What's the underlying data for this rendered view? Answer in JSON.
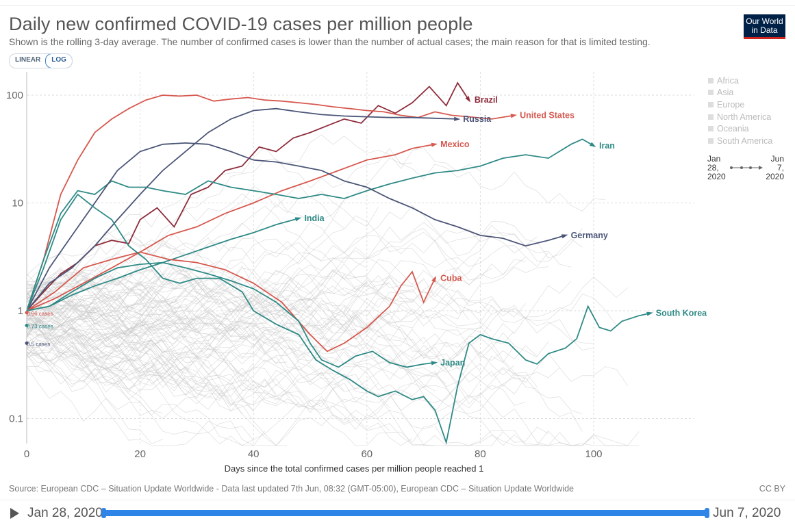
{
  "header": {
    "title": "Daily new confirmed COVID-19 cases per million people",
    "subtitle": "Shown is the rolling 3-day average. The number of confirmed cases is lower than the number of actual cases; the main reason for that is limited testing.",
    "logo_line1": "Our World",
    "logo_line2": "in Data"
  },
  "scale_toggle": {
    "linear": "LINEAR",
    "log": "LOG",
    "selected": "LOG"
  },
  "legend": {
    "items": [
      "Africa",
      "Asia",
      "Europe",
      "North America",
      "Oceania",
      "South America"
    ],
    "timeline_start_l1": "Jan",
    "timeline_start_l2": "28,",
    "timeline_start_l3": "2020",
    "timeline_end_l1": "Jun",
    "timeline_end_l2": "7,",
    "timeline_end_l3": "2020"
  },
  "footer": {
    "source": "Source: European CDC – Situation Update Worldwide - Data last updated 7th Jun, 08:32 (GMT-05:00), European CDC – Situation Update Worldwide",
    "license": "CC BY"
  },
  "timeline": {
    "start": "Jan 28, 2020",
    "end": "Jun 7, 2020"
  },
  "chart_data": {
    "type": "line",
    "title": "Daily new confirmed COVID-19 cases per million people",
    "xlabel": "Days since the total confirmed cases per million people reached 1",
    "ylabel": "",
    "yscale": "log",
    "xlim": [
      0,
      118
    ],
    "ylim": [
      0.05,
      150
    ],
    "x_ticks": [
      0,
      20,
      40,
      60,
      80,
      100
    ],
    "y_ticks": [
      0.1,
      1,
      10,
      100
    ],
    "y_tick_labels": [
      "0.1",
      "1",
      "10",
      "100"
    ],
    "start_annotations": [
      "0.96 cases",
      "0.73 cases",
      "0.5 cases"
    ],
    "colors": {
      "red": "#d6584e",
      "darkred": "#8f2c3b",
      "navy": "#4b5577",
      "teal": "#2e8a86",
      "grey": "#c8c8c8"
    },
    "series": [
      {
        "name": "Brazil",
        "color": "#8f2c3b",
        "points": [
          [
            0,
            1
          ],
          [
            3,
            1.5
          ],
          [
            6,
            2.2
          ],
          [
            9,
            2.8
          ],
          [
            12,
            4
          ],
          [
            15,
            4.5
          ],
          [
            18,
            4.2
          ],
          [
            20,
            7
          ],
          [
            23,
            9
          ],
          [
            26,
            6
          ],
          [
            29,
            12
          ],
          [
            32,
            14
          ],
          [
            35,
            20
          ],
          [
            38,
            22
          ],
          [
            41,
            33
          ],
          [
            44,
            30
          ],
          [
            47,
            40
          ],
          [
            50,
            45
          ],
          [
            53,
            52
          ],
          [
            56,
            60
          ],
          [
            59,
            55
          ],
          [
            62,
            80
          ],
          [
            65,
            68
          ],
          [
            68,
            85
          ],
          [
            71,
            120
          ],
          [
            74,
            80
          ],
          [
            76,
            130
          ],
          [
            78,
            90
          ]
        ]
      },
      {
        "name": "United States",
        "color": "#d6584e",
        "points": [
          [
            0,
            1
          ],
          [
            3,
            3
          ],
          [
            6,
            12
          ],
          [
            9,
            25
          ],
          [
            12,
            45
          ],
          [
            15,
            60
          ],
          [
            18,
            75
          ],
          [
            21,
            90
          ],
          [
            24,
            100
          ],
          [
            27,
            98
          ],
          [
            30,
            100
          ],
          [
            33,
            88
          ],
          [
            36,
            92
          ],
          [
            39,
            95
          ],
          [
            42,
            90
          ],
          [
            45,
            88
          ],
          [
            48,
            85
          ],
          [
            51,
            82
          ],
          [
            54,
            78
          ],
          [
            57,
            75
          ],
          [
            60,
            72
          ],
          [
            63,
            70
          ],
          [
            66,
            65
          ],
          [
            69,
            62
          ],
          [
            72,
            70
          ],
          [
            75,
            65
          ],
          [
            78,
            63
          ],
          [
            82,
            60
          ],
          [
            86,
            65
          ]
        ]
      },
      {
        "name": "Russia",
        "color": "#4b5577",
        "points": [
          [
            0,
            1
          ],
          [
            4,
            1.8
          ],
          [
            8,
            2.5
          ],
          [
            12,
            4
          ],
          [
            16,
            7
          ],
          [
            20,
            12
          ],
          [
            24,
            20
          ],
          [
            28,
            30
          ],
          [
            32,
            45
          ],
          [
            36,
            60
          ],
          [
            40,
            72
          ],
          [
            44,
            75
          ],
          [
            48,
            70
          ],
          [
            52,
            66
          ],
          [
            56,
            64
          ],
          [
            60,
            63
          ],
          [
            64,
            62
          ],
          [
            68,
            62
          ],
          [
            72,
            61
          ],
          [
            76,
            60
          ]
        ]
      },
      {
        "name": "Mexico",
        "color": "#d6584e",
        "points": [
          [
            0,
            1
          ],
          [
            5,
            1.3
          ],
          [
            10,
            1.8
          ],
          [
            15,
            2.5
          ],
          [
            20,
            3.5
          ],
          [
            25,
            5
          ],
          [
            30,
            6
          ],
          [
            35,
            8
          ],
          [
            40,
            10
          ],
          [
            45,
            13
          ],
          [
            50,
            16
          ],
          [
            55,
            20
          ],
          [
            60,
            25
          ],
          [
            65,
            28
          ],
          [
            68,
            32
          ],
          [
            72,
            35
          ]
        ]
      },
      {
        "name": "Iran",
        "color": "#2e8a86",
        "points": [
          [
            0,
            1
          ],
          [
            3,
            3
          ],
          [
            6,
            8
          ],
          [
            9,
            13
          ],
          [
            12,
            12
          ],
          [
            15,
            16
          ],
          [
            18,
            14
          ],
          [
            21,
            14
          ],
          [
            24,
            13
          ],
          [
            28,
            12
          ],
          [
            32,
            16
          ],
          [
            36,
            14
          ],
          [
            40,
            13
          ],
          [
            44,
            12
          ],
          [
            48,
            11
          ],
          [
            52,
            12
          ],
          [
            56,
            11
          ],
          [
            60,
            13
          ],
          [
            64,
            15
          ],
          [
            68,
            17
          ],
          [
            72,
            19
          ],
          [
            76,
            20
          ],
          [
            80,
            22
          ],
          [
            84,
            26
          ],
          [
            88,
            28
          ],
          [
            92,
            26
          ],
          [
            96,
            35
          ],
          [
            98,
            39
          ],
          [
            100,
            34
          ]
        ]
      },
      {
        "name": "India",
        "color": "#2e8a86",
        "points": [
          [
            0,
            1
          ],
          [
            4,
            1.1
          ],
          [
            8,
            1.4
          ],
          [
            12,
            1.7
          ],
          [
            16,
            2
          ],
          [
            20,
            2.4
          ],
          [
            24,
            2.8
          ],
          [
            28,
            3.3
          ],
          [
            32,
            3.9
          ],
          [
            36,
            4.6
          ],
          [
            40,
            5.3
          ],
          [
            44,
            6.3
          ],
          [
            48,
            7.2
          ]
        ]
      },
      {
        "name": "Germany",
        "color": "#4b5577",
        "points": [
          [
            0,
            1
          ],
          [
            4,
            2.5
          ],
          [
            8,
            5
          ],
          [
            12,
            10
          ],
          [
            16,
            20
          ],
          [
            20,
            30
          ],
          [
            24,
            35
          ],
          [
            28,
            36
          ],
          [
            32,
            35
          ],
          [
            36,
            30
          ],
          [
            40,
            25
          ],
          [
            44,
            24
          ],
          [
            48,
            22
          ],
          [
            52,
            20
          ],
          [
            56,
            16
          ],
          [
            60,
            14
          ],
          [
            64,
            11
          ],
          [
            68,
            9
          ],
          [
            72,
            7
          ],
          [
            76,
            6
          ],
          [
            80,
            5
          ],
          [
            84,
            4.7
          ],
          [
            88,
            4
          ],
          [
            92,
            4.5
          ],
          [
            95,
            5
          ]
        ]
      },
      {
        "name": "Cuba",
        "color": "#d6584e",
        "points": [
          [
            0,
            1
          ],
          [
            5,
            1.5
          ],
          [
            10,
            2.5
          ],
          [
            15,
            3
          ],
          [
            20,
            3.5
          ],
          [
            25,
            3
          ],
          [
            30,
            2.8
          ],
          [
            35,
            2.4
          ],
          [
            40,
            1.8
          ],
          [
            45,
            1.2
          ],
          [
            50,
            0.6
          ],
          [
            53,
            0.42
          ],
          [
            56,
            0.5
          ],
          [
            60,
            0.7
          ],
          [
            64,
            1.1
          ],
          [
            66,
            1.7
          ],
          [
            68,
            2.3
          ],
          [
            70,
            1.2
          ],
          [
            72,
            2
          ]
        ]
      },
      {
        "name": "Japan",
        "color": "#2e8a86",
        "points": [
          [
            0,
            1
          ],
          [
            4,
            1.1
          ],
          [
            8,
            1.5
          ],
          [
            12,
            2
          ],
          [
            16,
            2.5
          ],
          [
            20,
            2.7
          ],
          [
            24,
            2.8
          ],
          [
            28,
            2.5
          ],
          [
            32,
            2.2
          ],
          [
            36,
            1.9
          ],
          [
            40,
            1.6
          ],
          [
            44,
            1.2
          ],
          [
            48,
            0.8
          ],
          [
            50,
            0.5
          ],
          [
            52,
            0.35
          ],
          [
            55,
            0.3
          ],
          [
            58,
            0.38
          ],
          [
            61,
            0.42
          ],
          [
            64,
            0.33
          ],
          [
            67,
            0.3
          ],
          [
            70,
            0.32
          ],
          [
            72,
            0.33
          ]
        ]
      },
      {
        "name": "South Korea",
        "color": "#2e8a86",
        "points": [
          [
            0,
            1
          ],
          [
            3,
            2.5
          ],
          [
            6,
            7
          ],
          [
            9,
            12
          ],
          [
            12,
            9
          ],
          [
            15,
            7
          ],
          [
            18,
            4
          ],
          [
            21,
            3
          ],
          [
            24,
            2
          ],
          [
            27,
            1.8
          ],
          [
            30,
            2
          ],
          [
            34,
            2
          ],
          [
            38,
            1.5
          ],
          [
            40,
            1
          ],
          [
            44,
            0.75
          ],
          [
            48,
            0.6
          ],
          [
            51,
            0.35
          ],
          [
            54,
            0.28
          ],
          [
            57,
            0.23
          ],
          [
            60,
            0.18
          ],
          [
            62,
            0.16
          ],
          [
            65,
            0.18
          ],
          [
            68,
            0.15
          ],
          [
            70,
            0.16
          ],
          [
            72,
            0.12
          ],
          [
            74,
            0.06
          ],
          [
            76,
            0.2
          ],
          [
            78,
            0.5
          ],
          [
            80,
            0.6
          ],
          [
            82,
            0.55
          ],
          [
            85,
            0.5
          ],
          [
            88,
            0.35
          ],
          [
            90,
            0.32
          ],
          [
            92,
            0.4
          ],
          [
            95,
            0.45
          ],
          [
            97,
            0.55
          ],
          [
            99,
            1.1
          ],
          [
            101,
            0.7
          ],
          [
            103,
            0.65
          ],
          [
            105,
            0.8
          ],
          [
            108,
            0.9
          ],
          [
            110,
            0.95
          ]
        ]
      }
    ]
  }
}
